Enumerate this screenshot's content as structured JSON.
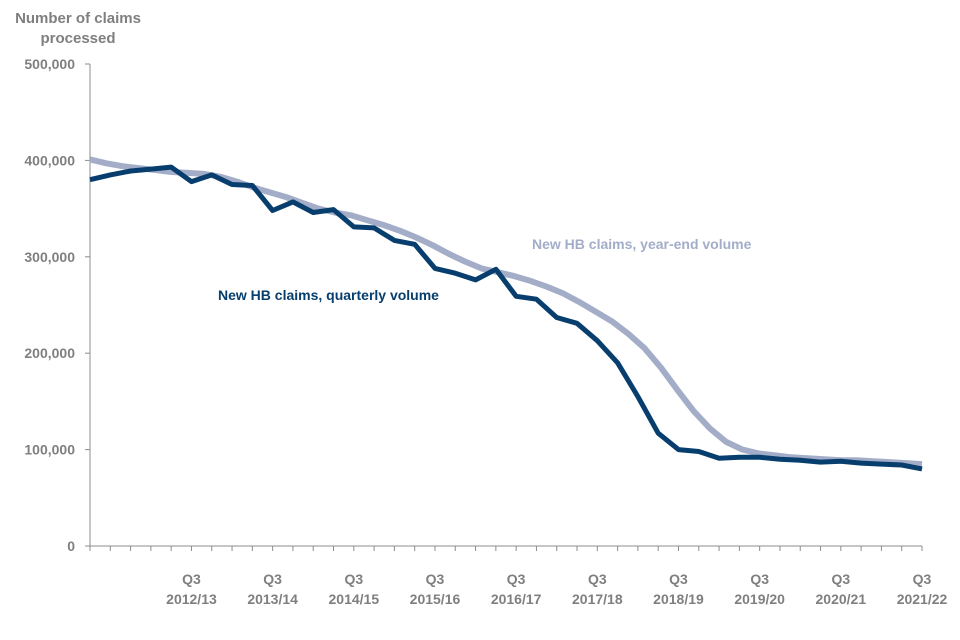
{
  "chart_data": {
    "type": "line",
    "ylabel": [
      "Number of claims",
      "processed"
    ],
    "ylim": [
      0,
      500000
    ],
    "yticks": [
      0,
      100000,
      200000,
      300000,
      400000,
      500000
    ],
    "ytick_labels": [
      "0",
      "100,000",
      "200,000",
      "300,000",
      "400,000",
      "500,000"
    ],
    "xtick_labels": [
      {
        "q": "Q3",
        "year": "2012/13"
      },
      {
        "q": "Q3",
        "year": "2013/14"
      },
      {
        "q": "Q3",
        "year": "2014/15"
      },
      {
        "q": "Q3",
        "year": "2015/16"
      },
      {
        "q": "Q3",
        "year": "2016/17"
      },
      {
        "q": "Q3",
        "year": "2017/18"
      },
      {
        "q": "Q3",
        "year": "2018/19"
      },
      {
        "q": "Q3",
        "year": "2019/20"
      },
      {
        "q": "Q3",
        "year": "2020/21"
      },
      {
        "q": "Q3",
        "year": "2021/22"
      }
    ],
    "grid": false,
    "series": [
      {
        "name": "New HB claims, year-end volume",
        "color": "#a3adc8",
        "values": [
          401000,
          397000,
          394000,
          392000,
          390000,
          388000,
          387000,
          386000,
          383000,
          378000,
          372000,
          367000,
          362000,
          356000,
          350000,
          346000,
          343000,
          338000,
          333000,
          327000,
          320000,
          312000,
          303000,
          295000,
          288000,
          284000,
          280000,
          275000,
          269000,
          262000,
          253000,
          243000,
          233000,
          220000,
          205000,
          185000,
          162000,
          140000,
          122000,
          108000,
          100000,
          96000,
          94000,
          92000,
          91000,
          90000,
          89000,
          89000,
          88000,
          87000,
          86000,
          85000
        ]
      },
      {
        "name": "New HB claims, quarterly volume",
        "color": "#073e6e",
        "values": [
          380000,
          385000,
          389000,
          391000,
          393000,
          378000,
          385000,
          375000,
          374000,
          348000,
          357000,
          346000,
          349000,
          331000,
          330000,
          317000,
          313000,
          288000,
          283000,
          276000,
          287000,
          259000,
          256000,
          237000,
          231000,
          213000,
          190000,
          155000,
          117000,
          100000,
          98000,
          91000,
          92000,
          92000,
          90000,
          89000,
          87000,
          88000,
          86000,
          85000,
          84000,
          80000
        ]
      }
    ],
    "annotations": [
      {
        "text": "New HB claims, year-end volume",
        "series": 0
      },
      {
        "text": "New HB claims, quarterly volume",
        "series": 1
      }
    ]
  }
}
